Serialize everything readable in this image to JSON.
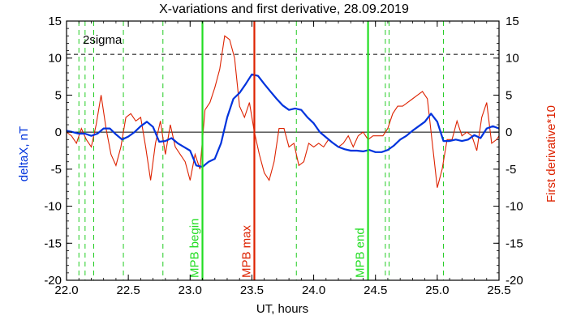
{
  "chart_data": {
    "type": "line",
    "title": "X-variations and first derivative, 28.09.2019",
    "xlabel": "UT, hours",
    "ylabel_left": "deltaX, nT",
    "ylabel_right": "First derivative*10",
    "xlim": [
      22.0,
      25.5
    ],
    "ylim": [
      -20,
      15
    ],
    "x_ticks": [
      "22.0",
      "22.5",
      "23.0",
      "23.5",
      "24.0",
      "24.5",
      "25.0",
      "25.5"
    ],
    "y_ticks": [
      "15",
      "10",
      "5",
      "0",
      "-5",
      "-10",
      "-15",
      "-20"
    ],
    "y_tick_values": [
      15,
      10,
      5,
      0,
      -5,
      -10,
      -15,
      -20
    ],
    "x_tick_values": [
      22.0,
      22.5,
      23.0,
      23.5,
      24.0,
      24.5,
      25.0,
      25.5
    ],
    "colors": {
      "deltaX": "#0033dd",
      "derivative": "#dd2200",
      "mpb": "#22dd22",
      "marker_dashed": "#22cc22",
      "mpb_max": "#dd2200"
    },
    "sigma": {
      "label": "2sigma",
      "value": 10.5
    },
    "zero_line": 0,
    "annotations": {
      "mpb_begin": {
        "label": "MPB begin",
        "x": 23.1
      },
      "mpb_max": {
        "label": "MPB max",
        "x": 23.52
      },
      "mpb_end": {
        "label": "MPB end",
        "x": 24.44
      }
    },
    "dashed_markers_x": [
      22.1,
      22.15,
      22.22,
      22.46,
      22.78,
      23.86,
      24.58,
      24.61,
      25.05
    ],
    "series": [
      {
        "name": "deltaX, nT",
        "x": [
          22.0,
          22.05,
          22.1,
          22.15,
          22.2,
          22.25,
          22.3,
          22.35,
          22.4,
          22.45,
          22.5,
          22.55,
          22.6,
          22.65,
          22.7,
          22.75,
          22.8,
          22.85,
          22.9,
          22.95,
          23.0,
          23.05,
          23.1,
          23.15,
          23.2,
          23.25,
          23.3,
          23.35,
          23.4,
          23.45,
          23.5,
          23.55,
          23.6,
          23.65,
          23.7,
          23.75,
          23.8,
          23.85,
          23.9,
          23.95,
          24.0,
          24.05,
          24.1,
          24.15,
          24.2,
          24.25,
          24.3,
          24.35,
          24.4,
          24.45,
          24.5,
          24.55,
          24.6,
          24.65,
          24.7,
          24.75,
          24.8,
          24.85,
          24.9,
          24.95,
          25.0,
          25.05,
          25.1,
          25.15,
          25.2,
          25.25,
          25.3,
          25.35,
          25.4,
          25.45,
          25.5
        ],
        "values": [
          0.2,
          0.0,
          -0.2,
          -0.2,
          -0.5,
          -0.2,
          0.5,
          0.5,
          -0.3,
          -1.0,
          -0.6,
          0.0,
          0.8,
          1.4,
          0.7,
          -1.3,
          -1.2,
          -0.8,
          -1.5,
          -2.0,
          -2.5,
          -4.5,
          -4.7,
          -4.0,
          -3.6,
          -1.5,
          2.0,
          4.5,
          5.3,
          6.5,
          7.8,
          7.6,
          6.5,
          5.5,
          4.5,
          3.6,
          3.0,
          3.2,
          3.0,
          2.0,
          1.2,
          0.0,
          -0.7,
          -1.4,
          -2.0,
          -2.3,
          -2.5,
          -2.5,
          -2.6,
          -2.4,
          -2.7,
          -2.7,
          -2.4,
          -1.8,
          -1.0,
          -0.5,
          0.2,
          0.8,
          1.4,
          2.5,
          1.4,
          -1.2,
          -1.2,
          -1.0,
          -1.2,
          -1.0,
          -0.4,
          -0.8,
          0.5,
          0.8,
          0.5
        ]
      },
      {
        "name": "First derivative*10",
        "x": [
          22.0,
          22.04,
          22.08,
          22.12,
          22.16,
          22.2,
          22.24,
          22.28,
          22.32,
          22.36,
          22.4,
          22.44,
          22.48,
          22.52,
          22.56,
          22.6,
          22.64,
          22.68,
          22.72,
          22.76,
          22.8,
          22.84,
          22.88,
          22.92,
          22.96,
          23.0,
          23.04,
          23.08,
          23.12,
          23.16,
          23.2,
          23.24,
          23.28,
          23.32,
          23.36,
          23.4,
          23.44,
          23.48,
          23.52,
          23.56,
          23.6,
          23.64,
          23.68,
          23.72,
          23.76,
          23.8,
          23.84,
          23.88,
          23.92,
          23.96,
          24.0,
          24.04,
          24.08,
          24.12,
          24.16,
          24.2,
          24.24,
          24.28,
          24.32,
          24.36,
          24.4,
          24.44,
          24.48,
          24.52,
          24.56,
          24.6,
          24.64,
          24.68,
          24.72,
          24.76,
          24.8,
          24.84,
          24.88,
          24.92,
          24.96,
          25.0,
          25.04,
          25.08,
          25.12,
          25.16,
          25.2,
          25.24,
          25.28,
          25.32,
          25.36,
          25.4,
          25.44,
          25.48,
          25.5
        ],
        "values": [
          0.0,
          -0.5,
          -1.5,
          0.5,
          -1.0,
          -2.0,
          1.0,
          5.0,
          0.5,
          -3.0,
          -4.5,
          -2.0,
          2.0,
          2.5,
          1.5,
          2.0,
          -2.0,
          -6.5,
          -1.5,
          1.5,
          -3.0,
          1.0,
          -2.0,
          -3.0,
          -4.0,
          -6.5,
          -3.0,
          -5.0,
          3.0,
          4.0,
          6.0,
          8.5,
          13.0,
          12.5,
          10.0,
          3.5,
          2.0,
          4.0,
          0.0,
          -3.0,
          -5.5,
          -6.5,
          -4.0,
          0.5,
          0.5,
          -2.0,
          -1.5,
          -4.5,
          -4.0,
          -1.5,
          -2.0,
          -1.5,
          -2.0,
          -1.0,
          -1.5,
          -2.0,
          -1.5,
          -0.5,
          -2.0,
          -0.5,
          0.0,
          -1.0,
          -0.5,
          -0.5,
          -0.5,
          0.5,
          2.5,
          3.5,
          3.5,
          4.0,
          4.5,
          5.0,
          5.5,
          4.5,
          -1.5,
          -7.5,
          -5.0,
          -1.0,
          -1.0,
          1.5,
          -0.5,
          0.0,
          -0.5,
          -2.5,
          2.0,
          4.0,
          -1.5,
          -1.0,
          -0.5
        ]
      }
    ]
  }
}
